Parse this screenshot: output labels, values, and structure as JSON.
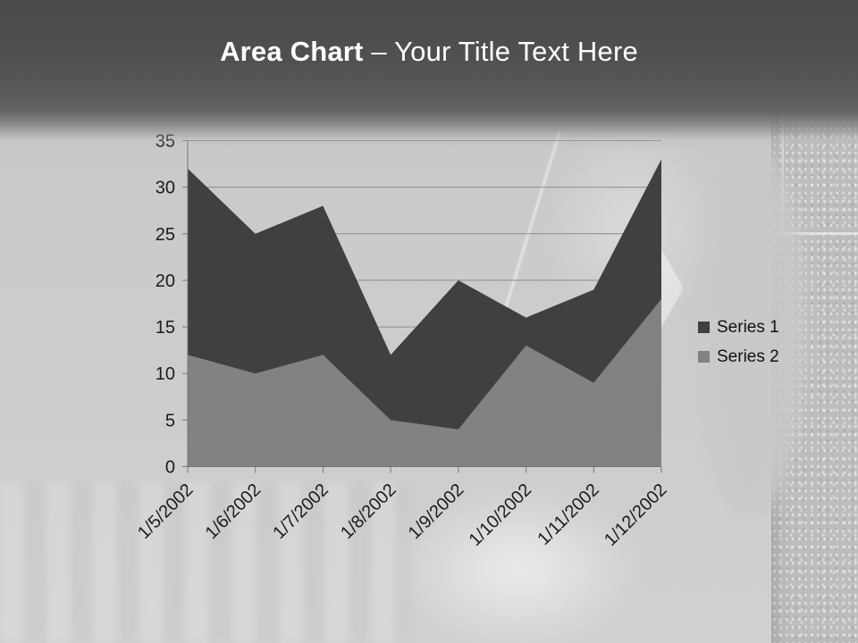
{
  "slide": {
    "title_bold": "Area Chart",
    "title_regular": "– Your Title Text Here"
  },
  "chart_data": {
    "type": "area",
    "overlapped": true,
    "title": "",
    "xlabel": "",
    "ylabel": "",
    "categories": [
      "1/5/2002",
      "1/6/2002",
      "1/7/2002",
      "1/8/2002",
      "1/9/2002",
      "1/10/2002",
      "1/11/2002",
      "1/12/2002"
    ],
    "series": [
      {
        "name": "Series 1",
        "values": [
          32,
          25,
          28,
          12,
          20,
          16,
          19,
          33
        ],
        "color": "#404040"
      },
      {
        "name": "Series 2",
        "values": [
          12,
          10,
          12,
          5,
          4,
          13,
          9,
          18
        ],
        "color": "#828282"
      }
    ],
    "ylim": [
      0,
      35
    ],
    "ytick_step": 5,
    "grid": true,
    "legend_position": "right",
    "colors": {
      "gridline": "#8c8c8c",
      "axis": "#757575",
      "tick_text": "#1c1c1c"
    }
  }
}
